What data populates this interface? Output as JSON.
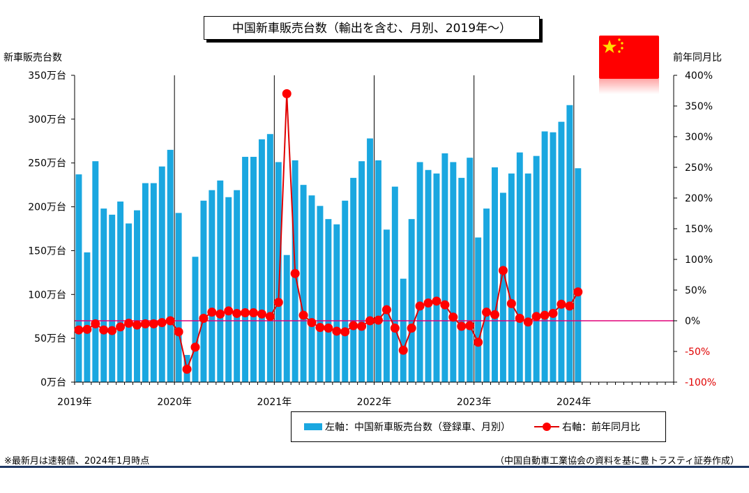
{
  "title": "中国新車販売台数（輸出を含む、月別、2019年～）",
  "left_axis_title": "新車販売台数",
  "right_axis_title": "前年同月比",
  "legend": {
    "bars": "左軸：中国新車販売台数（登録車、月別）",
    "line": "右軸：前年同月比"
  },
  "footnote": "※最新月は速報値、2024年1月時点",
  "source": "（中国自動車工業協会の資料を基に豊トラスティ証券作成）",
  "colors": {
    "bar": "#1aa7e0",
    "line": "#e00000",
    "marker": "#ff0000",
    "zero_line": "#e0007a",
    "flag": "#ff0000",
    "star": "#ffde00"
  },
  "flag_icon": "china-flag-icon",
  "chart_data": {
    "type": "bar",
    "months_axis": {
      "start": "2019-01",
      "slots": 72
    },
    "x_tick_labels": [
      "2019年",
      "2020年",
      "2021年",
      "2022年",
      "2023年",
      "2024年"
    ],
    "left_axis": {
      "ylim": [
        0,
        350
      ],
      "ticks": [
        0,
        50,
        100,
        150,
        200,
        250,
        300,
        350
      ],
      "tick_labels": [
        "0万台",
        "50万台",
        "100万台",
        "150万台",
        "200万台",
        "250万台",
        "300万台",
        "350万台"
      ]
    },
    "right_axis": {
      "ylim": [
        -100,
        400
      ],
      "ticks": [
        -100,
        -50,
        0,
        50,
        100,
        150,
        200,
        250,
        300,
        350,
        400
      ],
      "tick_labels": [
        "-100%",
        "-50%",
        "0%",
        "50%",
        "100%",
        "150%",
        "200%",
        "250%",
        "300%",
        "350%",
        "400%"
      ]
    },
    "grid": false,
    "series": [
      {
        "name": "左軸：中国新車販売台数（登録車、月別）",
        "type": "bar",
        "axis": "left",
        "unit": "万台",
        "values": [
          237,
          148,
          252,
          198,
          191,
          206,
          181,
          196,
          227,
          227,
          246,
          265,
          193,
          31,
          143,
          207,
          219,
          230,
          211,
          219,
          257,
          257,
          277,
          283,
          251,
          145,
          253,
          225,
          213,
          201,
          186,
          180,
          207,
          233,
          252,
          278,
          253,
          174,
          223,
          118,
          186,
          251,
          242,
          238,
          261,
          251,
          233,
          256,
          165,
          198,
          245,
          216,
          238,
          262,
          238,
          258,
          286,
          285,
          297,
          316,
          244
        ]
      },
      {
        "name": "右軸：前年同月比",
        "type": "line",
        "axis": "right",
        "unit": "%",
        "values": [
          -15,
          -14,
          -5,
          -15,
          -16,
          -10,
          -4,
          -7,
          -5,
          -5,
          -3,
          0,
          -18,
          -79,
          -43,
          4,
          14,
          11,
          16,
          12,
          13,
          13,
          11,
          7,
          30,
          370,
          77,
          9,
          -3,
          -11,
          -12,
          -17,
          -18,
          -8,
          -9,
          0,
          1,
          18,
          -12,
          -48,
          -12,
          24,
          29,
          32,
          26,
          6,
          -9,
          -8,
          -35,
          14,
          10,
          82,
          28,
          4,
          -2,
          7,
          9,
          12,
          27,
          24,
          47
        ]
      }
    ]
  }
}
